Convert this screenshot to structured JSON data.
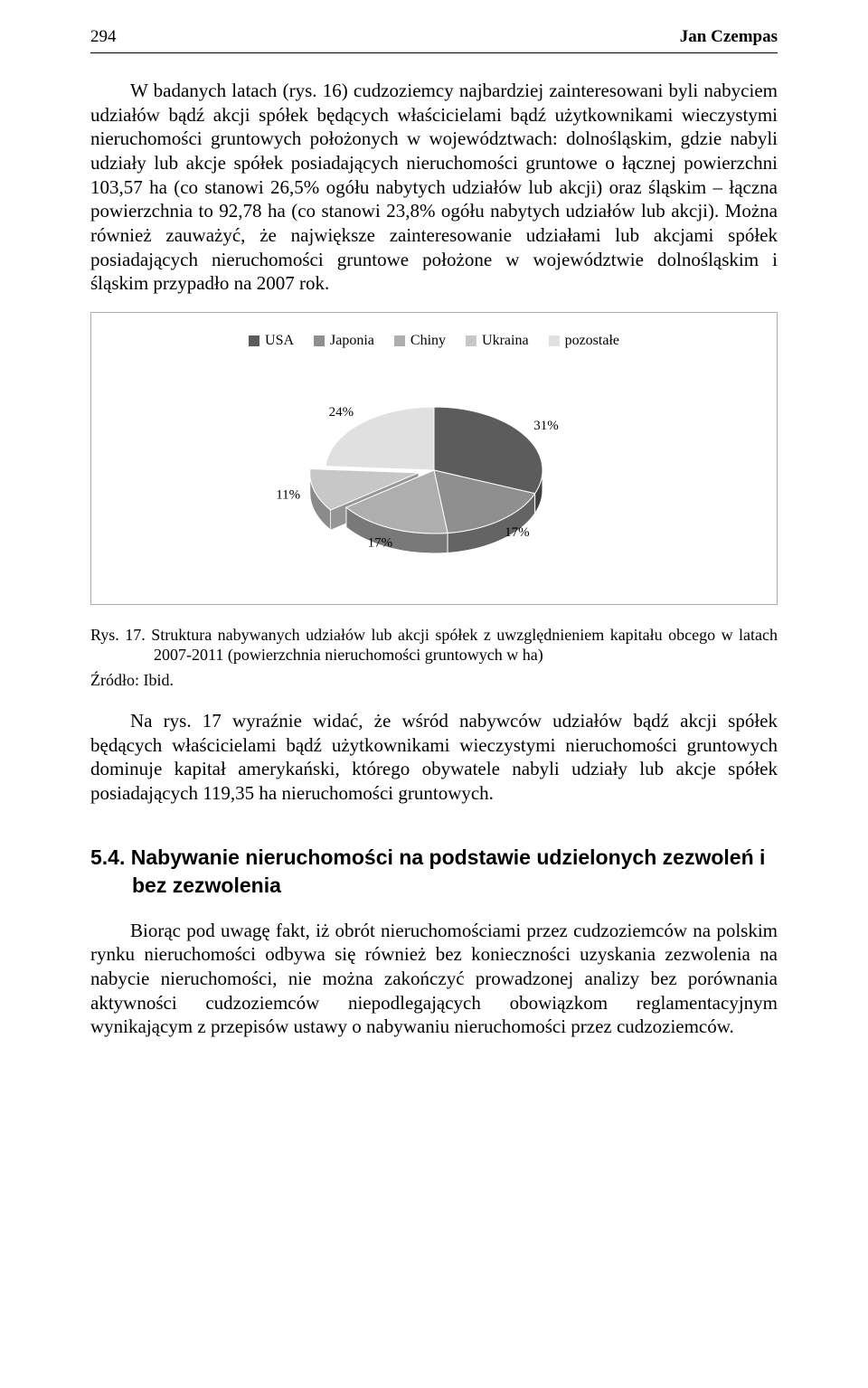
{
  "header": {
    "page_number": "294",
    "author": "Jan Czempas"
  },
  "paragraph1": "W badanych latach (rys. 16) cudzoziemcy najbardziej zainteresowani byli nabyciem udziałów bądź akcji spółek będących właścicielami bądź użytkownikami wieczystymi nieruchomości gruntowych położonych w województwach: dolnośląskim, gdzie nabyli udziały lub akcje spółek posiadających nieruchomości gruntowe o łącznej powierzchni 103,57 ha (co stanowi 26,5% ogółu nabytych udziałów lub akcji) oraz śląskim – łączna powierzchnia to 92,78 ha (co stanowi 23,8% ogółu nabytych udziałów lub akcji). Można również zauważyć, że największe zainteresowanie udziałami lub akcjami spółek posiadających nieruchomości gruntowe położone w województwie dolnośląskim i śląskim przypadło na 2007 rok.",
  "chart": {
    "type": "pie",
    "legend": [
      {
        "label": "USA",
        "color": "#5c5c5c"
      },
      {
        "label": "Japonia",
        "color": "#8f8f8f"
      },
      {
        "label": "Chiny",
        "color": "#aeaeae"
      },
      {
        "label": "Ukraina",
        "color": "#c7c7c7"
      },
      {
        "label": "pozostałe",
        "color": "#e0e0e0"
      }
    ],
    "slices": [
      {
        "label": "31%",
        "value": 31,
        "color": "#5c5c5c",
        "pulled": false
      },
      {
        "label": "17%",
        "value": 17,
        "color": "#8f8f8f",
        "pulled": false
      },
      {
        "label": "17%",
        "value": 17,
        "color": "#aeaeae",
        "pulled": false
      },
      {
        "label": "11%",
        "value": 11,
        "color": "#c7c7c7",
        "pulled": true
      },
      {
        "label": "24%",
        "value": 24,
        "color": "#e0e0e0",
        "pulled": false
      }
    ],
    "label_font_size": 15,
    "label_color": "#000000",
    "stroke_color": "#ffffff",
    "frame_border_color": "#aaaaaa",
    "background": "#ffffff"
  },
  "figure_caption": "Rys. 17. Struktura nabywanych udziałów lub akcji spółek z uwzględnieniem kapitału obcego w latach 2007-2011 (powierzchnia nieruchomości gruntowych w ha)",
  "source_line": "Źródło: Ibid.",
  "paragraph2": "Na rys. 17 wyraźnie widać, że wśród nabywców udziałów bądź akcji spółek będących właścicielami bądź użytkownikami wieczystymi nieruchomości gruntowych dominuje kapitał amerykański, którego obywatele nabyli udziały lub akcje spółek posiadających 119,35 ha nieruchomości gruntowych.",
  "section_heading": "5.4. Nabywanie nieruchomości na podstawie udzielonych zezwoleń i bez zezwolenia",
  "paragraph3": "Biorąc pod uwagę fakt, iż obrót nieruchomościami przez cudzoziemców na polskim rynku nieruchomości odbywa się również bez konieczności uzyskania zezwolenia na nabycie nieruchomości, nie można zakończyć prowadzonej analizy bez porównania aktywności cudzoziemców niepodlegających obowiązkom reglamentacyjnym wynikającym z przepisów ustawy o nabywaniu nieruchomości przez cudzoziemców."
}
